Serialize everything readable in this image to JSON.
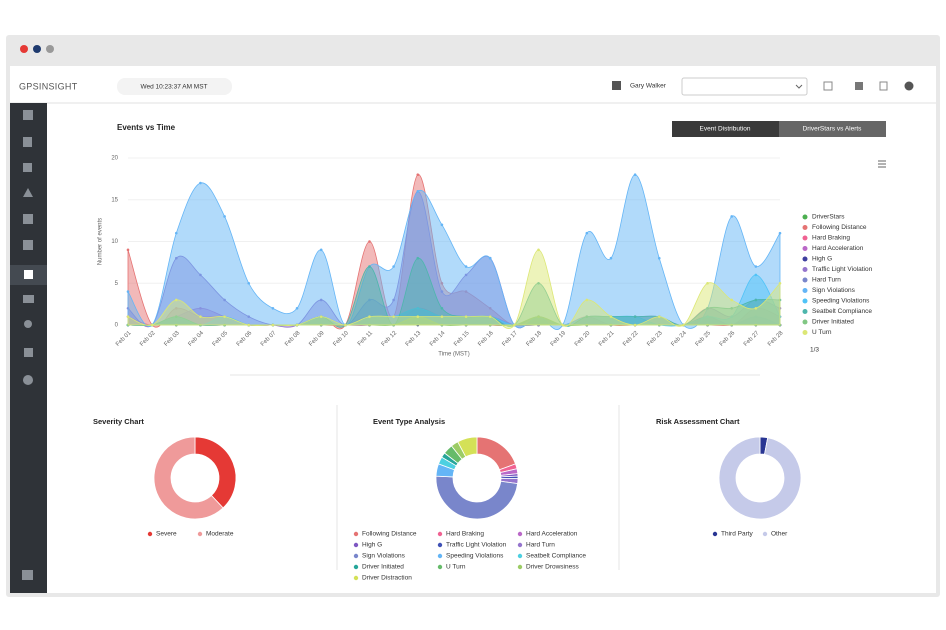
{
  "header": {
    "logo": "GPSINSIGHT",
    "datetime": "Wed 10:23:37 AM MST",
    "user": "Gary Walker"
  },
  "tabs": [
    "Event Distribution",
    "DriverStars vs Alerts"
  ],
  "chart_data": [
    {
      "type": "area",
      "title": "Events vs Time",
      "y_label": "Number of events",
      "x_label": "Time (MST)",
      "legend_page": "1/3",
      "categories": [
        "Feb 01",
        "Feb 02",
        "Feb 03",
        "Feb 04",
        "Feb 05",
        "Feb 06",
        "Feb 07",
        "Feb 08",
        "Feb 09",
        "Feb 10",
        "Feb 11",
        "Feb 12",
        "Feb 13",
        "Feb 14",
        "Feb 15",
        "Feb 16",
        "Feb 17",
        "Feb 18",
        "Feb 19",
        "Feb 20",
        "Feb 21",
        "Feb 22",
        "Feb 23",
        "Feb 24",
        "Feb 25",
        "Feb 26",
        "Feb 27",
        "Feb 28"
      ],
      "ylim": [
        0,
        20
      ],
      "yticks": [
        0,
        5,
        10,
        15,
        20
      ],
      "series": [
        {
          "name": "DriverStars",
          "color": "#4caf50",
          "values": [
            0,
            0,
            0,
            0,
            0,
            0,
            0,
            0,
            0,
            0,
            0,
            0,
            0,
            0,
            0,
            0,
            0,
            0,
            0,
            0,
            0,
            0,
            0,
            0,
            0,
            0,
            0,
            0
          ]
        },
        {
          "name": "Following Distance",
          "color": "#e57373",
          "values": [
            9,
            0,
            2,
            1,
            1,
            0,
            0,
            0,
            1,
            0,
            10,
            1,
            18,
            5,
            4,
            2,
            0,
            1,
            0,
            1,
            0,
            0,
            0,
            0,
            1,
            0,
            2,
            1
          ]
        },
        {
          "name": "Hard Braking",
          "color": "#f06292",
          "values": [
            1,
            0,
            1,
            0,
            1,
            0,
            0,
            0,
            0,
            0,
            1,
            0,
            2,
            1,
            1,
            0,
            0,
            0,
            0,
            0,
            0,
            0,
            0,
            0,
            0,
            0,
            1,
            0
          ]
        },
        {
          "name": "Hard Acceleration",
          "color": "#ba68c8",
          "values": [
            0,
            0,
            1,
            2,
            1,
            0,
            0,
            0,
            0,
            0,
            0,
            1,
            1,
            1,
            0,
            1,
            0,
            0,
            0,
            0,
            0,
            0,
            0,
            0,
            0,
            0,
            0,
            0
          ]
        },
        {
          "name": "High G",
          "color": "#3f3f9f",
          "values": [
            0,
            0,
            0,
            0,
            0,
            0,
            0,
            0,
            0,
            0,
            0,
            0,
            0,
            0,
            0,
            0,
            0,
            0,
            0,
            0,
            0,
            0,
            0,
            0,
            0,
            0,
            0,
            0
          ]
        },
        {
          "name": "Traffic Light Violation",
          "color": "#9575cd",
          "values": [
            2,
            0,
            8,
            6,
            3,
            1,
            0,
            0,
            3,
            0,
            3,
            3,
            16,
            4,
            6,
            8,
            0,
            1,
            0,
            1,
            1,
            1,
            1,
            0,
            2,
            1,
            3,
            2
          ]
        },
        {
          "name": "Hard Turn",
          "color": "#7986cb",
          "values": [
            0,
            0,
            1,
            0,
            0,
            0,
            0,
            0,
            1,
            0,
            1,
            1,
            2,
            1,
            1,
            1,
            0,
            0,
            0,
            0,
            0,
            0,
            0,
            0,
            1,
            0,
            1,
            0
          ]
        },
        {
          "name": "Sign Violations",
          "color": "#64b5f6",
          "values": [
            4,
            0,
            11,
            17,
            13,
            5,
            2,
            2,
            9,
            0,
            7,
            7,
            16,
            12,
            7,
            8,
            0,
            1,
            0,
            11,
            8,
            18,
            8,
            0,
            2,
            13,
            7,
            11
          ]
        },
        {
          "name": "Speeding Violations",
          "color": "#4fc3f7",
          "values": [
            0,
            0,
            1,
            0,
            1,
            0,
            0,
            0,
            1,
            0,
            1,
            1,
            2,
            1,
            1,
            1,
            0,
            1,
            0,
            1,
            1,
            1,
            0,
            0,
            1,
            1,
            6,
            1
          ]
        },
        {
          "name": "Seatbelt Compliance",
          "color": "#4db6ac",
          "values": [
            0,
            0,
            1,
            0,
            0,
            0,
            0,
            0,
            1,
            0,
            7,
            0,
            8,
            2,
            1,
            1,
            0,
            5,
            0,
            1,
            1,
            1,
            1,
            0,
            2,
            2,
            3,
            3
          ]
        },
        {
          "name": "Driver Initiated",
          "color": "#81c784",
          "values": [
            0,
            0,
            0,
            0,
            0,
            0,
            0,
            0,
            0,
            0,
            0,
            0,
            1,
            0,
            0,
            0,
            0,
            1,
            0,
            0,
            0,
            0,
            0,
            0,
            0,
            0,
            0,
            0
          ]
        },
        {
          "name": "U Turn",
          "color": "#dce775",
          "values": [
            1,
            0,
            3,
            1,
            1,
            0,
            0,
            0,
            1,
            0,
            1,
            1,
            1,
            1,
            1,
            1,
            0,
            9,
            0,
            3,
            1,
            0,
            1,
            0,
            5,
            3,
            2,
            5
          ]
        }
      ]
    },
    {
      "type": "donut",
      "title": "Severity Chart",
      "categories": [
        "Severe",
        "Moderate"
      ],
      "values": [
        38,
        62
      ],
      "colors": [
        "#e53935",
        "#ef9a9a"
      ]
    },
    {
      "type": "donut",
      "title": "Event Type Analysis",
      "categories": [
        "Following Distance",
        "Hard Braking",
        "Hard Acceleration",
        "High G",
        "Traffic Light Violation",
        "Hard Turn",
        "Sign Violations",
        "Speeding Violations",
        "Seatbelt Compliance",
        "Driver Initiated",
        "U Turn",
        "Driver Drowsiness",
        "Driver Distraction"
      ],
      "values": [
        20,
        2,
        2,
        1,
        1,
        2,
        50,
        5,
        3,
        2,
        4,
        3,
        8
      ],
      "colors": [
        "#e57373",
        "#f06292",
        "#ba68c8",
        "#7e57c2",
        "#3f51b5",
        "#9575cd",
        "#7986cb",
        "#64b5f6",
        "#4dd0e1",
        "#26a69a",
        "#66bb6a",
        "#9ccc65",
        "#d4e157"
      ]
    },
    {
      "type": "donut",
      "title": "Risk Assessment Chart",
      "categories": [
        "Third Party",
        "Other"
      ],
      "values": [
        3,
        97
      ],
      "colors": [
        "#283593",
        "#c5cae9"
      ]
    }
  ]
}
